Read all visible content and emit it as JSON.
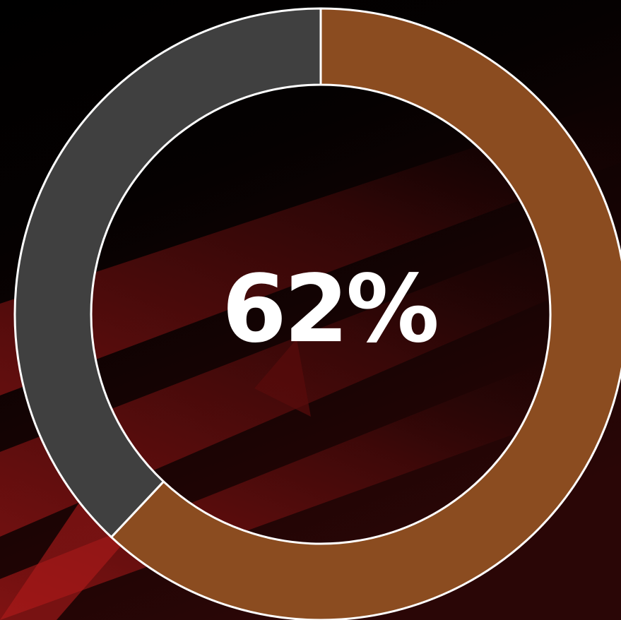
{
  "chart_data": {
    "type": "donut",
    "values": [
      62,
      38
    ],
    "value_labels": [
      "62%",
      null
    ],
    "colors": [
      "#8b4c20",
      "#404040"
    ]
  }
}
